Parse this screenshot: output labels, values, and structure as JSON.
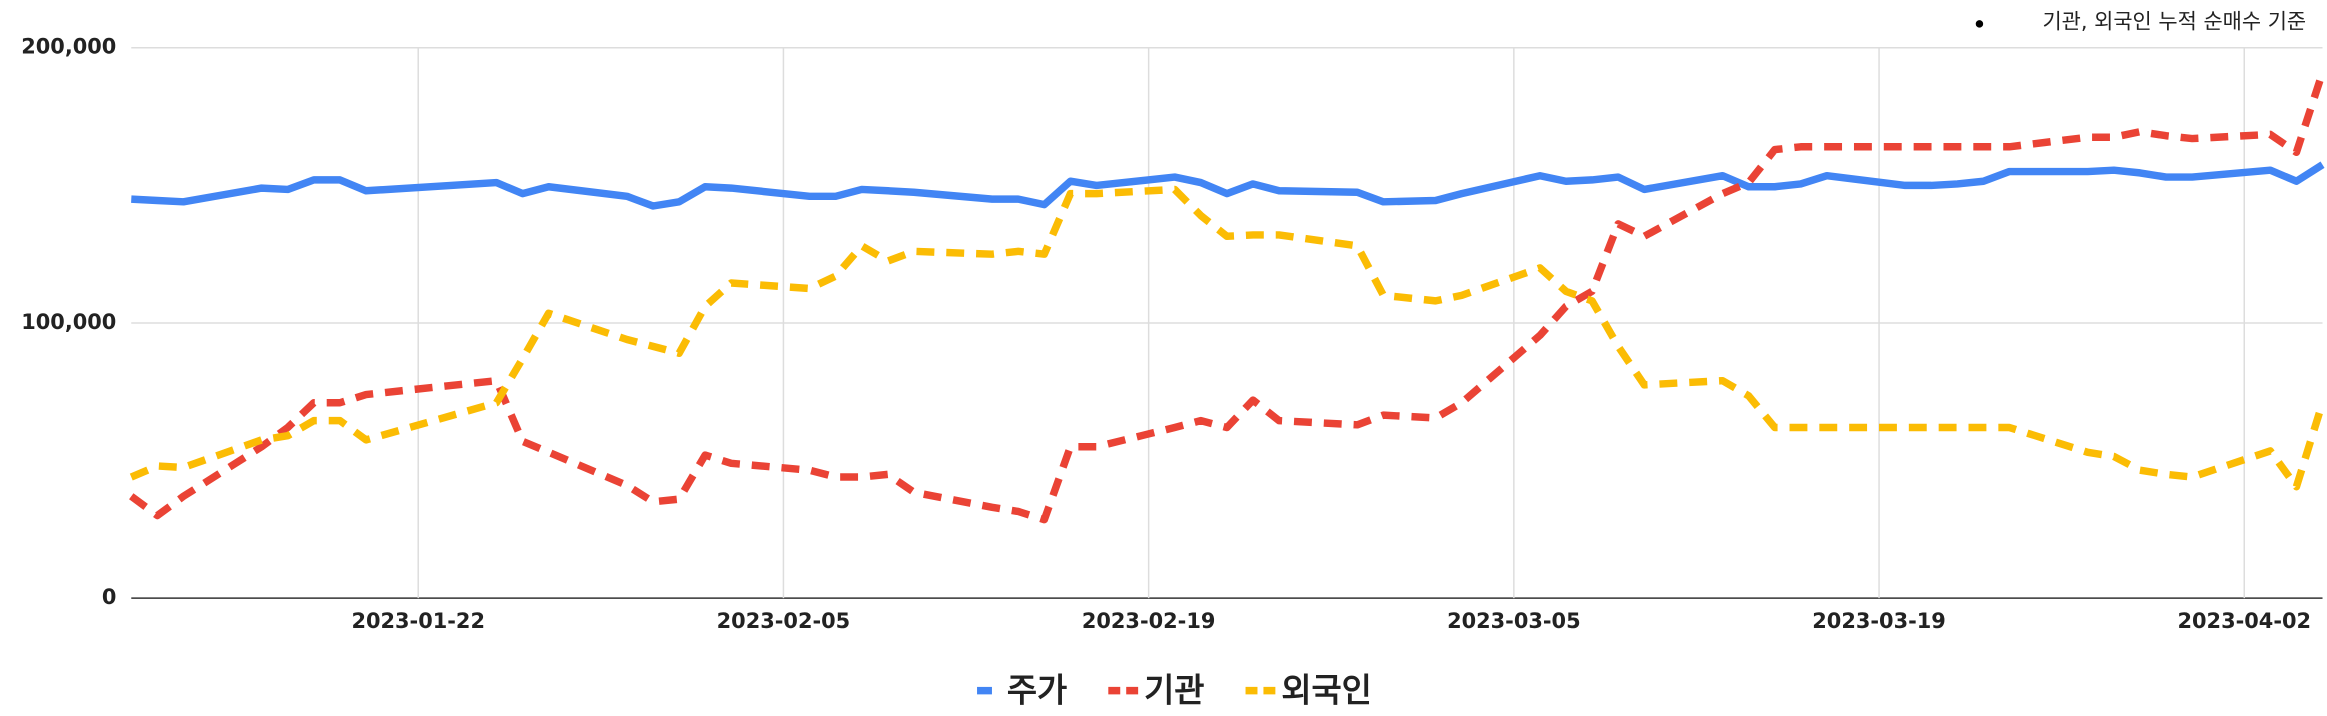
{
  "chart_data": {
    "type": "line",
    "annotation": "기관, 외국인 누적 순매수 기준",
    "x": [
      "2023-01-11",
      "2023-01-12",
      "2023-01-13",
      "2023-01-16",
      "2023-01-17",
      "2023-01-18",
      "2023-01-19",
      "2023-01-20",
      "2023-01-25",
      "2023-01-26",
      "2023-01-27",
      "2023-01-30",
      "2023-01-31",
      "2023-02-01",
      "2023-02-02",
      "2023-02-03",
      "2023-02-06",
      "2023-02-07",
      "2023-02-08",
      "2023-02-09",
      "2023-02-10",
      "2023-02-13",
      "2023-02-14",
      "2023-02-15",
      "2023-02-16",
      "2023-02-17",
      "2023-02-20",
      "2023-02-21",
      "2023-02-22",
      "2023-02-23",
      "2023-02-24",
      "2023-02-27",
      "2023-02-28",
      "2023-03-02",
      "2023-03-03",
      "2023-03-06",
      "2023-03-07",
      "2023-03-08",
      "2023-03-09",
      "2023-03-10",
      "2023-03-13",
      "2023-03-14",
      "2023-03-15",
      "2023-03-16",
      "2023-03-17",
      "2023-03-20",
      "2023-03-21",
      "2023-03-22",
      "2023-03-23",
      "2023-03-24",
      "2023-03-27",
      "2023-03-28",
      "2023-03-29",
      "2023-03-30",
      "2023-03-31",
      "2023-04-03",
      "2023-04-04",
      "2023-04-05"
    ],
    "series": [
      {
        "name": "주가",
        "color": "#4285f4",
        "dashed": false,
        "values": [
          145000,
          144500,
          144000,
          149000,
          148500,
          152000,
          152000,
          148000,
          151000,
          147000,
          149500,
          146000,
          142500,
          144000,
          149500,
          149000,
          146000,
          146000,
          148500,
          148000,
          147500,
          145000,
          145000,
          143000,
          151500,
          150000,
          153000,
          151000,
          147000,
          150500,
          148000,
          147500,
          144000,
          144500,
          147000,
          153500,
          151500,
          152000,
          153000,
          148500,
          153500,
          149500,
          149500,
          150500,
          153500,
          150000,
          150000,
          150500,
          151500,
          155000,
          155000,
          155500,
          154500,
          153000,
          153000,
          155500,
          151500,
          157500
        ]
      },
      {
        "name": "기관",
        "color": "#ea4335",
        "dashed": true,
        "values": [
          37000,
          30000,
          37000,
          55000,
          62000,
          71000,
          71000,
          74000,
          79000,
          57000,
          53000,
          41000,
          35000,
          36000,
          52000,
          49000,
          46500,
          44000,
          44000,
          45000,
          38500,
          33000,
          31500,
          28500,
          55000,
          55000,
          62000,
          64500,
          62000,
          72000,
          64500,
          63000,
          66500,
          65500,
          71000,
          95500,
          106000,
          111500,
          136000,
          131500,
          147000,
          151000,
          163000,
          164000,
          164000,
          164000,
          164000,
          164000,
          164000,
          164000,
          167500,
          167500,
          169500,
          168000,
          167000,
          168500,
          162000,
          191000
        ]
      },
      {
        "name": "외국인",
        "color": "#fbbc04",
        "dashed": true,
        "values": [
          44000,
          48000,
          47500,
          57500,
          59000,
          64500,
          64500,
          57500,
          71000,
          87000,
          103500,
          94000,
          91500,
          89000,
          106000,
          114500,
          112500,
          117000,
          128000,
          122500,
          126000,
          125000,
          126000,
          125000,
          147000,
          147000,
          148500,
          139000,
          131500,
          132000,
          132000,
          128000,
          110000,
          108000,
          110000,
          120000,
          111500,
          108000,
          91500,
          77500,
          79000,
          73500,
          62000,
          62000,
          62000,
          62000,
          62000,
          62000,
          62000,
          62000,
          53000,
          51500,
          46500,
          45000,
          44000,
          53500,
          40500,
          71000
        ]
      }
    ],
    "xlim": [
      "2023-01-11",
      "2023-04-05"
    ],
    "xticks": [
      "2023-01-22",
      "2023-02-05",
      "2023-02-19",
      "2023-03-05",
      "2023-03-19",
      "2023-04-02"
    ],
    "ylim": [
      0,
      200000
    ],
    "yticks": [
      0,
      {
        "value": 100000,
        "label": "100,000"
      },
      {
        "value": 200000,
        "label": "200,000"
      }
    ],
    "grid": true,
    "legend": "bottom"
  }
}
